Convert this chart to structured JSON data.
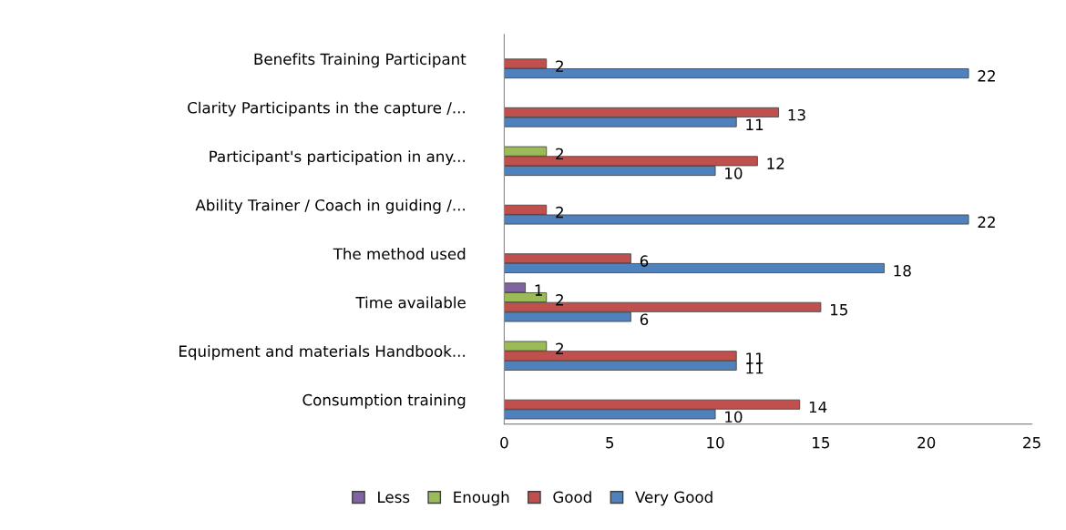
{
  "chart_data": {
    "type": "bar",
    "orientation": "horizontal",
    "categories": [
      "Benefits Training Participant",
      "Clarity Participants in the capture /...",
      "Participant's participation in any...",
      "Ability Trainer / Coach in guiding /...",
      "The method used",
      "Time available",
      "Equipment and materials Handbook...",
      "Consumption training"
    ],
    "series": [
      {
        "name": "Less",
        "color": "#8064a2",
        "values": [
          null,
          null,
          null,
          null,
          null,
          1,
          null,
          null
        ]
      },
      {
        "name": "Enough",
        "color": "#9bbb59",
        "values": [
          null,
          null,
          2,
          null,
          null,
          2,
          2,
          null
        ]
      },
      {
        "name": "Good",
        "color": "#c0504d",
        "values": [
          2,
          13,
          12,
          2,
          6,
          15,
          11,
          14
        ]
      },
      {
        "name": "Very Good",
        "color": "#4f81bd",
        "values": [
          22,
          11,
          10,
          22,
          18,
          6,
          11,
          10
        ]
      }
    ],
    "xlim": [
      0,
      25
    ],
    "xticks": [
      0,
      5,
      10,
      15,
      20,
      25
    ],
    "data_labels": true,
    "legend": "bottom",
    "grid": false
  }
}
